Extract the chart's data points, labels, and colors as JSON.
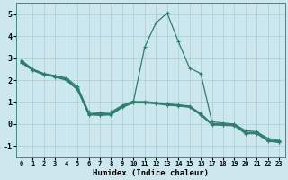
{
  "xlabel": "Humidex (Indice chaleur)",
  "xlim": [
    -0.5,
    23.5
  ],
  "ylim": [
    -1.5,
    5.5
  ],
  "yticks": [
    -1,
    0,
    1,
    2,
    3,
    4,
    5
  ],
  "xticks": [
    0,
    1,
    2,
    3,
    4,
    5,
    6,
    7,
    8,
    9,
    10,
    11,
    12,
    13,
    14,
    15,
    16,
    17,
    18,
    19,
    20,
    21,
    22,
    23
  ],
  "bg_color": "#cce8ee",
  "line_color": "#2e7d6e",
  "grid_color": "#aacdd6",
  "line_width": 0.9,
  "marker": "+",
  "marker_size": 3.5,
  "marker_edge_width": 0.8,
  "series": [
    [
      2.9,
      2.5,
      2.3,
      2.2,
      2.1,
      1.7,
      0.55,
      0.5,
      0.55,
      0.85,
      1.05,
      3.5,
      4.6,
      5.05,
      3.75,
      2.55,
      2.3,
      0.1,
      0.05,
      0.0,
      -0.3,
      -0.35,
      -0.65,
      -0.75
    ],
    [
      2.85,
      2.48,
      2.28,
      2.18,
      2.05,
      1.62,
      0.48,
      0.45,
      0.48,
      0.82,
      1.02,
      1.02,
      0.98,
      0.92,
      0.88,
      0.82,
      0.48,
      0.02,
      0.0,
      -0.02,
      -0.38,
      -0.38,
      -0.72,
      -0.78
    ],
    [
      2.82,
      2.46,
      2.26,
      2.16,
      2.02,
      1.59,
      0.45,
      0.42,
      0.45,
      0.79,
      0.99,
      0.99,
      0.95,
      0.89,
      0.85,
      0.79,
      0.44,
      -0.01,
      -0.03,
      -0.05,
      -0.41,
      -0.41,
      -0.75,
      -0.81
    ],
    [
      2.78,
      2.44,
      2.24,
      2.14,
      1.99,
      1.56,
      0.42,
      0.39,
      0.42,
      0.76,
      0.96,
      0.96,
      0.92,
      0.86,
      0.82,
      0.76,
      0.41,
      -0.04,
      -0.06,
      -0.08,
      -0.44,
      -0.44,
      -0.78,
      -0.84
    ]
  ]
}
